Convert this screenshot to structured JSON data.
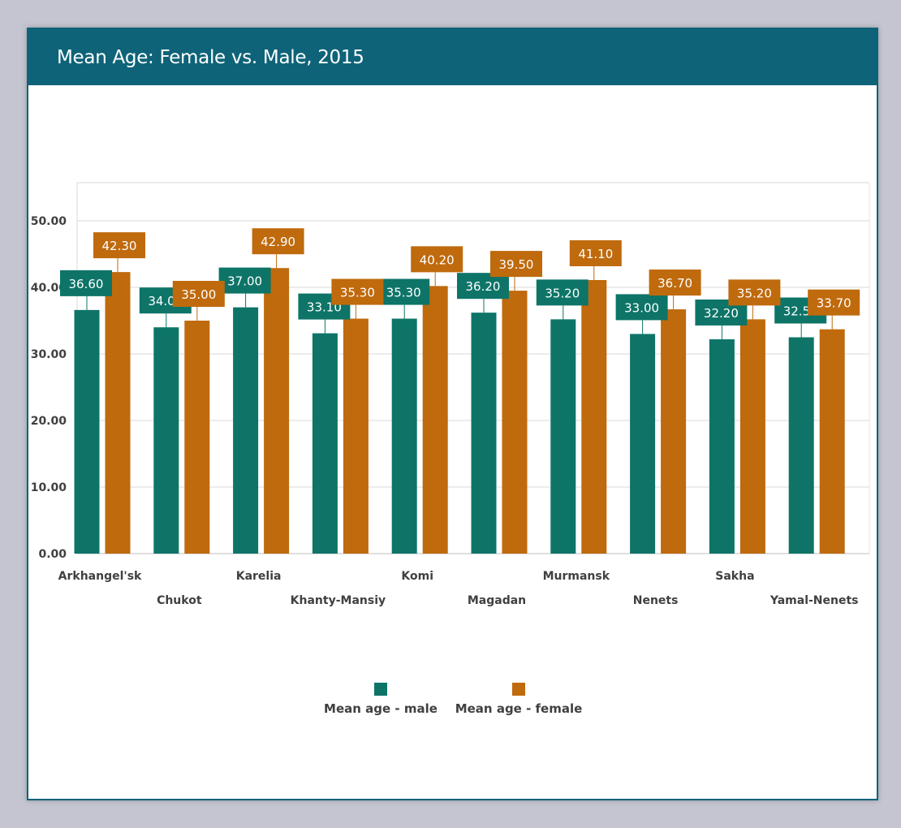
{
  "header": {
    "title": "Mean Age: Female vs. Male, 2015"
  },
  "colors": {
    "male": "#0e7468",
    "female": "#bf6a0d",
    "header": "#0e6378"
  },
  "chart_data": {
    "type": "bar",
    "title": "Mean Age: Female vs. Male, 2015",
    "categories": [
      "Arkhangel'sk",
      "Chukot",
      "Karelia",
      "Khanty-Mansiy",
      "Komi",
      "Magadan",
      "Murmansk",
      "Nenets",
      "Sakha",
      "Yamal-Nenets"
    ],
    "series": [
      {
        "name": "Mean age - male",
        "values": [
          36.6,
          34.0,
          37.0,
          33.1,
          35.3,
          36.2,
          35.2,
          33.0,
          32.2,
          32.5
        ]
      },
      {
        "name": "Mean age - female",
        "values": [
          42.3,
          35.0,
          42.9,
          35.3,
          40.2,
          39.5,
          41.1,
          36.7,
          35.2,
          33.7
        ]
      }
    ],
    "yticks": [
      "0.00",
      "10.00",
      "20.00",
      "30.00",
      "40.00",
      "50.00"
    ],
    "ylim": [
      0,
      55
    ],
    "grid": true,
    "legend_position": "bottom"
  }
}
